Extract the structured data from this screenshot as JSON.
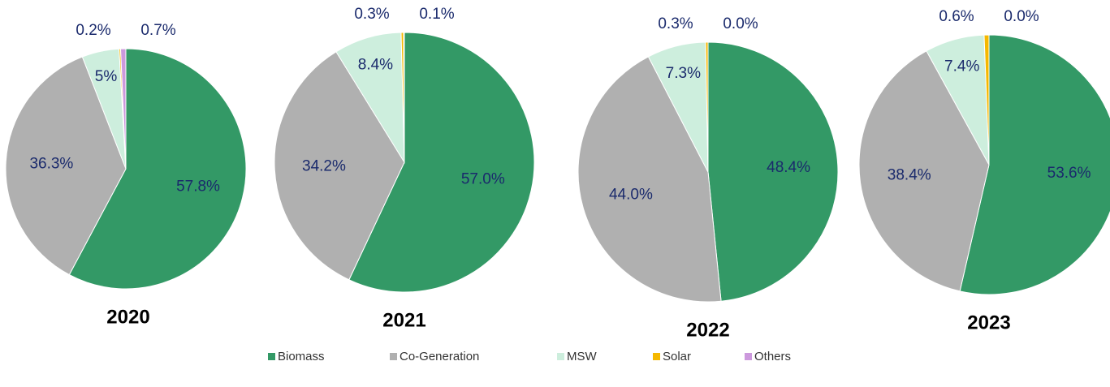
{
  "chart_data": [
    {
      "type": "pie",
      "title": "2020",
      "categories": [
        "Biomass",
        "Co-Generation",
        "MSW",
        "Solar",
        "Others"
      ],
      "colors": [
        "#339966",
        "#b0b0b0",
        "#cdeedd",
        "#f5b800",
        "#cc99dd"
      ],
      "values": [
        57.8,
        36.3,
        5,
        0.2,
        0.7
      ],
      "value_labels": [
        "57.8%",
        "36.3%",
        "5%",
        "0.2%",
        "0.7%"
      ]
    },
    {
      "type": "pie",
      "title": "2021",
      "categories": [
        "Biomass",
        "Co-Generation",
        "MSW",
        "Solar",
        "Others"
      ],
      "colors": [
        "#339966",
        "#b0b0b0",
        "#cdeedd",
        "#f5b800",
        "#cc99dd"
      ],
      "values": [
        57.0,
        34.2,
        8.4,
        0.3,
        0.1
      ],
      "value_labels": [
        "57.0%",
        "34.2%",
        "8.4%",
        "0.3%",
        "0.1%"
      ]
    },
    {
      "type": "pie",
      "title": "2022",
      "categories": [
        "Biomass",
        "Co-Generation",
        "MSW",
        "Solar",
        "Others"
      ],
      "colors": [
        "#339966",
        "#b0b0b0",
        "#cdeedd",
        "#f5b800",
        "#cc99dd"
      ],
      "values": [
        48.4,
        44.0,
        7.3,
        0.3,
        0.0
      ],
      "value_labels": [
        "48.4%",
        "44.0%",
        "7.3%",
        "0.3%",
        "0.0%"
      ]
    },
    {
      "type": "pie",
      "title": "2023",
      "categories": [
        "Biomass",
        "Co-Generation",
        "MSW",
        "Solar",
        "Others"
      ],
      "colors": [
        "#339966",
        "#b0b0b0",
        "#cdeedd",
        "#f5b800",
        "#cc99dd"
      ],
      "values": [
        53.6,
        38.4,
        7.4,
        0.6,
        0.0
      ],
      "value_labels": [
        "53.6%",
        "38.4%",
        "7.4%",
        "0.6%",
        "0.0%"
      ]
    }
  ]
}
